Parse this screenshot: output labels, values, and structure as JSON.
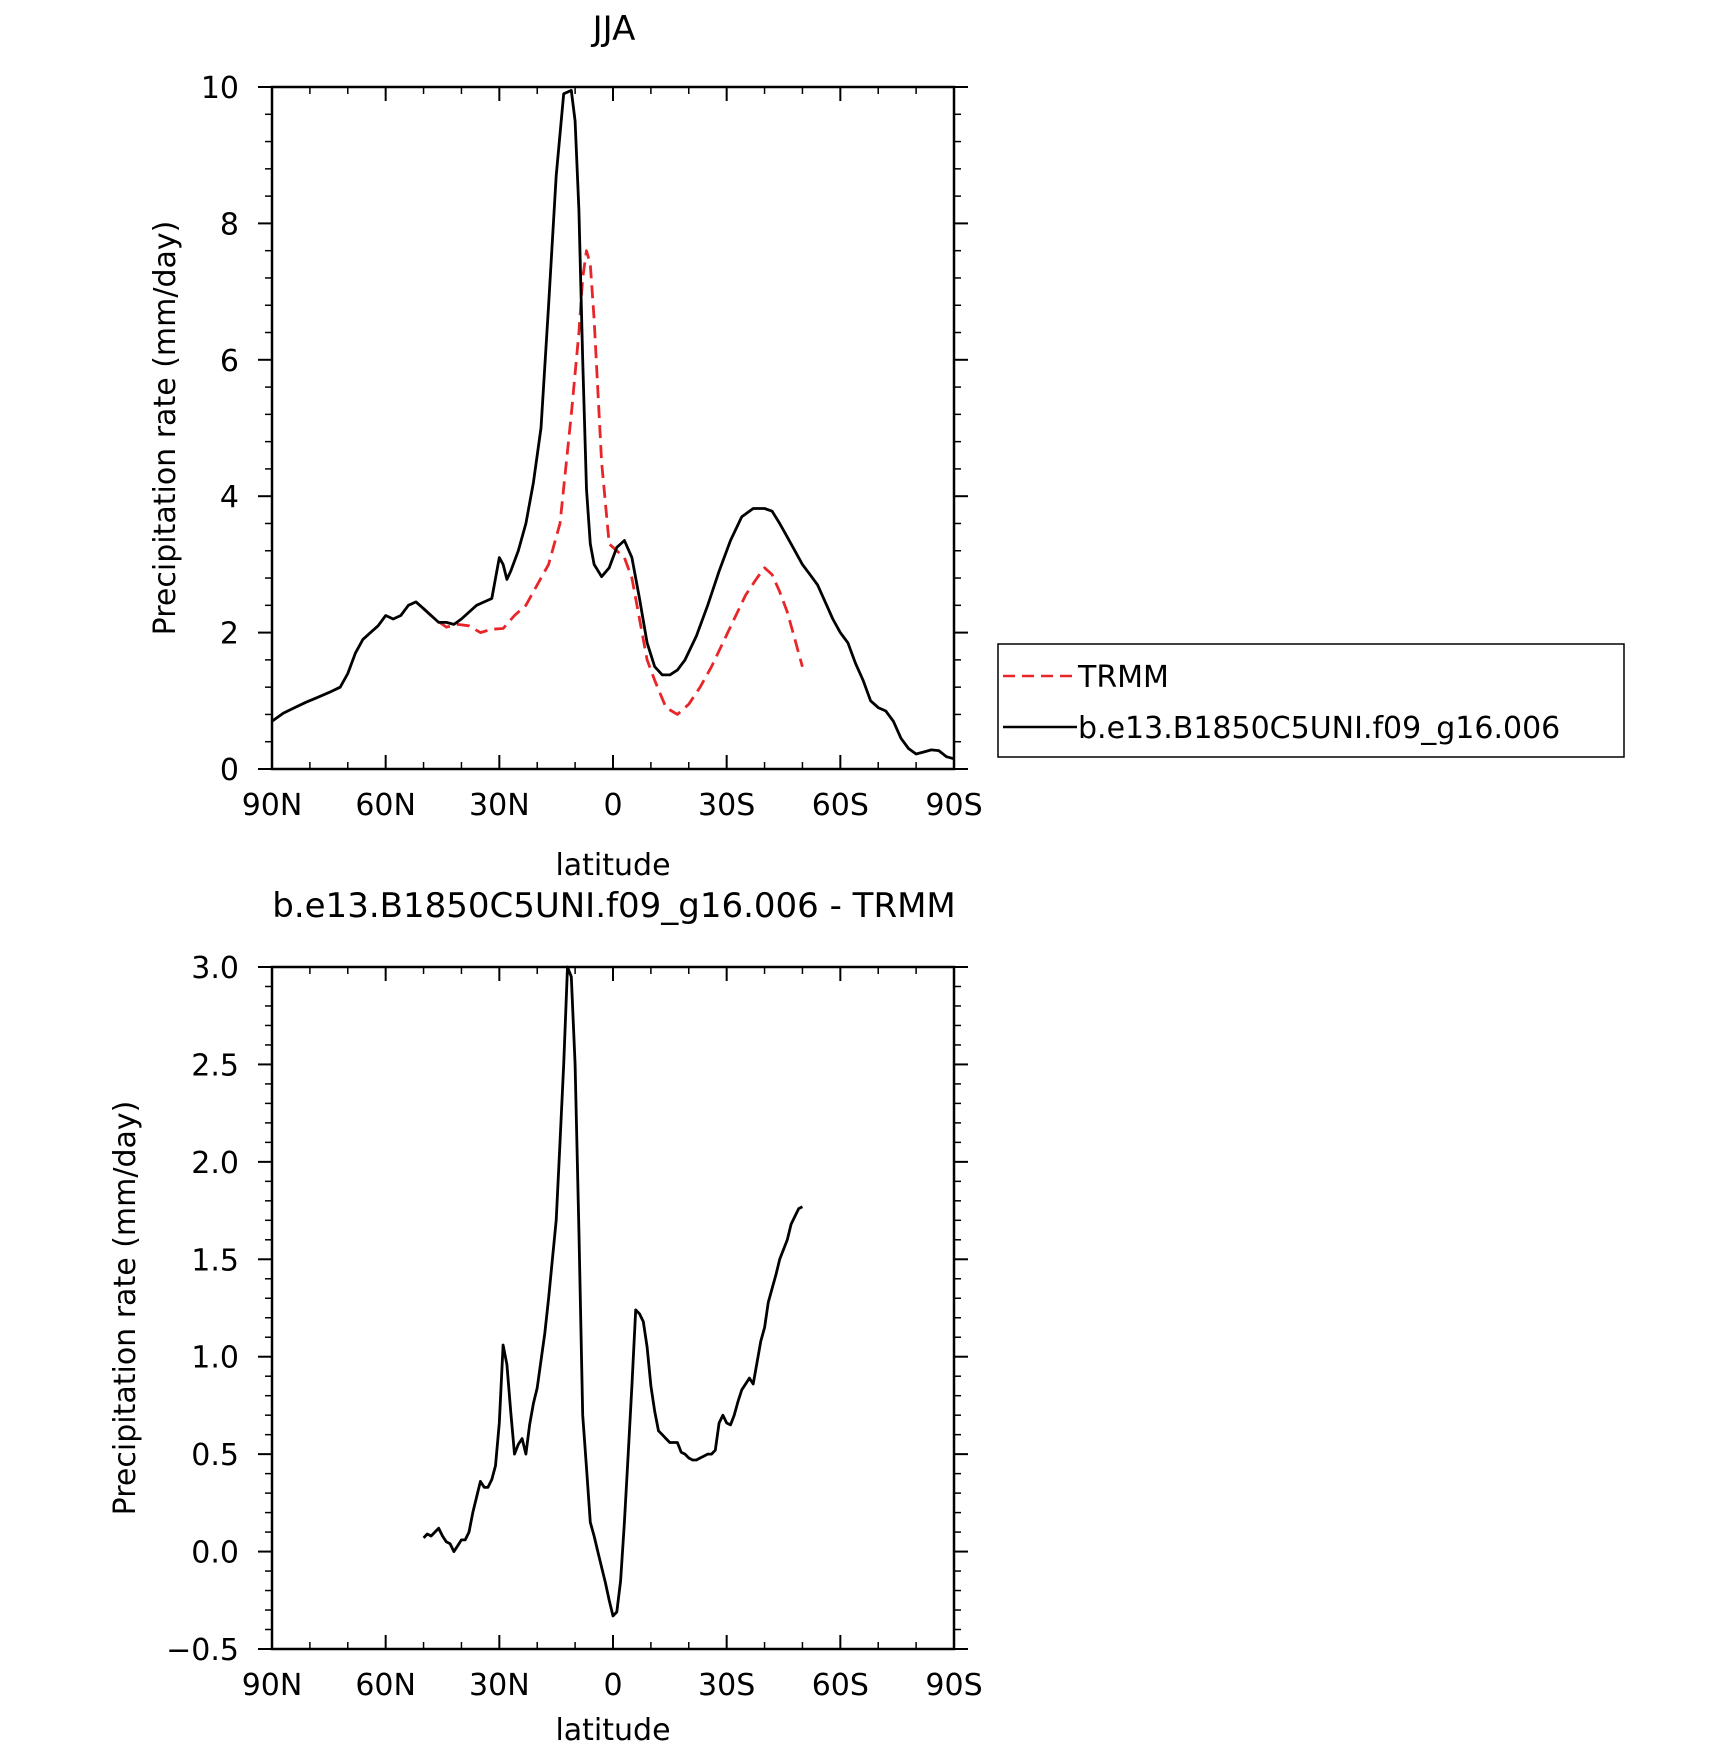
{
  "chart_data": [
    {
      "type": "line",
      "title": "JJA",
      "xlabel": "latitude",
      "ylabel": "Precipitation rate (mm/day)",
      "x_ticks": [
        90,
        60,
        30,
        0,
        -30,
        -60,
        -90
      ],
      "x_tick_labels": [
        "90N",
        "60N",
        "30N",
        "0",
        "30S",
        "60S",
        "90S"
      ],
      "xlim": [
        90,
        -90
      ],
      "ylim": [
        0,
        10
      ],
      "y_ticks": [
        0,
        2,
        4,
        6,
        8,
        10
      ],
      "y_tick_labels": [
        "0",
        "2",
        "4",
        "6",
        "8",
        "10"
      ],
      "legend_position": "right",
      "series": [
        {
          "name": "TRMM",
          "color": "#e8262a",
          "dash": "dashed",
          "x": [
            50,
            47,
            44,
            41,
            38,
            35,
            32,
            29,
            26,
            23,
            20,
            17,
            14,
            11,
            9,
            8,
            7,
            6,
            5,
            3,
            1,
            -1,
            -3,
            -5,
            -7,
            -9,
            -11,
            -14,
            -17,
            -20,
            -23,
            -26,
            -29,
            -32,
            -35,
            -38,
            -40,
            -42,
            -44,
            -46,
            -48,
            -50
          ],
          "y": [
            2.35,
            2.2,
            2.08,
            2.12,
            2.1,
            2.0,
            2.05,
            2.06,
            2.25,
            2.4,
            2.7,
            3.0,
            3.6,
            5.2,
            6.4,
            7.2,
            7.6,
            7.4,
            6.6,
            4.5,
            3.3,
            3.2,
            3.1,
            2.8,
            2.2,
            1.6,
            1.3,
            0.9,
            0.8,
            0.95,
            1.2,
            1.5,
            1.85,
            2.2,
            2.55,
            2.8,
            2.95,
            2.85,
            2.6,
            2.3,
            1.9,
            1.5
          ]
        },
        {
          "name": "b.e13.B1850C5UNI.f09_g16.006",
          "color": "#000000",
          "dash": "solid",
          "x": [
            90,
            87,
            84,
            81,
            78,
            75,
            72,
            70,
            68,
            66,
            64,
            62,
            60,
            58,
            56,
            54,
            52,
            50,
            48,
            46,
            44,
            42,
            40,
            38,
            36,
            34,
            32,
            30,
            29,
            28,
            27,
            26,
            25,
            23,
            21,
            19,
            17,
            15,
            13,
            11,
            10,
            9,
            8,
            7,
            6,
            5,
            3,
            1,
            -1,
            -3,
            -5,
            -7,
            -9,
            -11,
            -13,
            -15,
            -17,
            -19,
            -22,
            -25,
            -28,
            -31,
            -34,
            -37,
            -40,
            -42,
            -44,
            -46,
            -48,
            -50,
            -52,
            -54,
            -56,
            -58,
            -60,
            -62,
            -64,
            -66,
            -68,
            -70,
            -72,
            -74,
            -76,
            -78,
            -80,
            -82,
            -84,
            -86,
            -88,
            -90
          ],
          "y": [
            0.7,
            0.82,
            0.9,
            0.98,
            1.05,
            1.12,
            1.2,
            1.4,
            1.7,
            1.9,
            2.0,
            2.1,
            2.25,
            2.2,
            2.25,
            2.4,
            2.45,
            2.35,
            2.25,
            2.15,
            2.15,
            2.12,
            2.2,
            2.3,
            2.4,
            2.45,
            2.5,
            3.1,
            3.0,
            2.78,
            2.9,
            3.05,
            3.2,
            3.6,
            4.2,
            5.0,
            6.8,
            8.7,
            9.9,
            9.95,
            9.5,
            8.2,
            6.0,
            4.1,
            3.3,
            3.0,
            2.82,
            2.95,
            3.25,
            3.35,
            3.1,
            2.5,
            1.85,
            1.5,
            1.38,
            1.38,
            1.45,
            1.6,
            1.95,
            2.4,
            2.9,
            3.35,
            3.7,
            3.82,
            3.82,
            3.78,
            3.6,
            3.4,
            3.2,
            3.0,
            2.85,
            2.7,
            2.45,
            2.2,
            2.0,
            1.85,
            1.55,
            1.3,
            1.0,
            0.9,
            0.85,
            0.7,
            0.45,
            0.3,
            0.22,
            0.25,
            0.28,
            0.27,
            0.18,
            0.15
          ]
        }
      ]
    },
    {
      "type": "line",
      "title": "b.e13.B1850C5UNI.f09_g16.006 - TRMM",
      "xlabel": "latitude",
      "ylabel": "Precipitation rate (mm/day)",
      "x_ticks": [
        90,
        60,
        30,
        0,
        -30,
        -60,
        -90
      ],
      "x_tick_labels": [
        "90N",
        "60N",
        "30N",
        "0",
        "30S",
        "60S",
        "90S"
      ],
      "xlim": [
        90,
        -90
      ],
      "ylim": [
        -0.5,
        3.0
      ],
      "y_ticks": [
        -0.5,
        0.0,
        0.5,
        1.0,
        1.5,
        2.0,
        2.5,
        3.0
      ],
      "y_tick_labels": [
        "−0.5",
        "0.0",
        "0.5",
        "1.0",
        "1.5",
        "2.0",
        "2.5",
        "3.0"
      ],
      "series": [
        {
          "color": "#000000",
          "dash": "solid",
          "x": [
            50,
            49,
            48,
            47,
            46,
            45,
            44,
            43,
            42,
            41,
            40,
            39,
            38,
            37,
            36,
            35,
            34,
            33,
            32,
            31,
            30,
            29,
            28,
            27,
            26,
            25,
            24,
            23,
            22,
            21,
            20,
            19,
            18,
            17,
            16,
            15,
            14,
            13,
            12,
            11,
            10,
            9,
            8,
            7,
            6,
            5,
            4,
            3,
            2,
            1,
            0,
            -1,
            -2,
            -3,
            -4,
            -5,
            -6,
            -7,
            -8,
            -9,
            -10,
            -11,
            -12,
            -13,
            -14,
            -15,
            -16,
            -17,
            -18,
            -19,
            -20,
            -21,
            -22,
            -23,
            -24,
            -25,
            -26,
            -27,
            -28,
            -29,
            -30,
            -31,
            -32,
            -33,
            -34,
            -35,
            -36,
            -37,
            -38,
            -39,
            -40,
            -41,
            -42,
            -43,
            -44,
            -45,
            -46,
            -47,
            -48,
            -49,
            -50
          ],
          "y": [
            0.07,
            0.09,
            0.08,
            0.1,
            0.12,
            0.08,
            0.05,
            0.04,
            0.0,
            0.03,
            0.06,
            0.06,
            0.1,
            0.2,
            0.28,
            0.36,
            0.33,
            0.33,
            0.37,
            0.44,
            0.66,
            1.06,
            0.96,
            0.72,
            0.5,
            0.55,
            0.58,
            0.5,
            0.65,
            0.76,
            0.84,
            0.98,
            1.12,
            1.3,
            1.5,
            1.7,
            2.1,
            2.5,
            3.0,
            2.95,
            2.5,
            1.65,
            0.7,
            0.43,
            0.15,
            0.08,
            0.0,
            -0.08,
            -0.16,
            -0.25,
            -0.33,
            -0.31,
            -0.15,
            0.15,
            0.5,
            0.85,
            1.24,
            1.22,
            1.18,
            1.05,
            0.85,
            0.72,
            0.62,
            0.6,
            0.58,
            0.56,
            0.56,
            0.56,
            0.51,
            0.5,
            0.48,
            0.47,
            0.47,
            0.48,
            0.49,
            0.5,
            0.5,
            0.52,
            0.66,
            0.7,
            0.66,
            0.65,
            0.7,
            0.77,
            0.83,
            0.86,
            0.89,
            0.86,
            0.97,
            1.08,
            1.15,
            1.28,
            1.35,
            1.42,
            1.5,
            1.55,
            1.6,
            1.68,
            1.72,
            1.76,
            1.77
          ]
        }
      ]
    }
  ]
}
